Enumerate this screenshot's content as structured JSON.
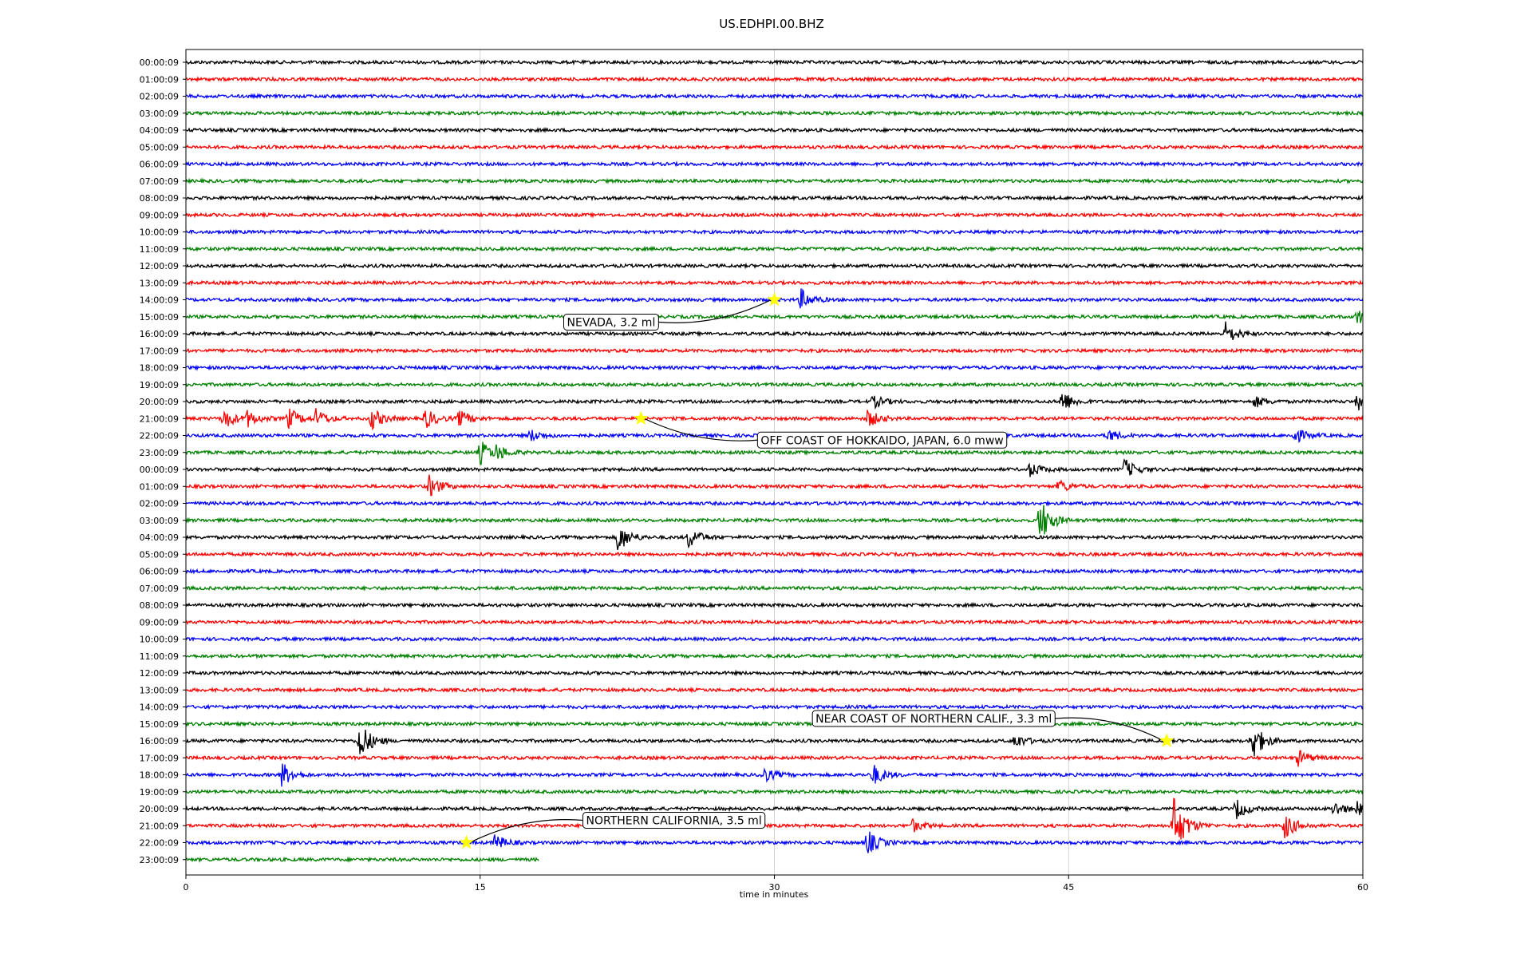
{
  "chart_data": {
    "type": "line",
    "title": "US.EDHPI.00.BHZ",
    "xlabel": "time in minutes",
    "ylabel": "",
    "xlim": [
      0,
      60
    ],
    "x_ticks": [
      0,
      15,
      30,
      45,
      60
    ],
    "grid_x": true,
    "trace_colors": [
      "#000000",
      "#ff0000",
      "#0000ff",
      "#008000"
    ],
    "highlight_color": "#ffff00",
    "rows": [
      "00:00:09",
      "01:00:09",
      "02:00:09",
      "03:00:09",
      "04:00:09",
      "05:00:09",
      "06:00:09",
      "07:00:09",
      "08:00:09",
      "09:00:09",
      "10:00:09",
      "11:00:09",
      "12:00:09",
      "13:00:09",
      "14:00:09",
      "15:00:09",
      "16:00:09",
      "17:00:09",
      "18:00:09",
      "19:00:09",
      "20:00:09",
      "21:00:09",
      "22:00:09",
      "23:00:09",
      "00:00:09",
      "01:00:09",
      "02:00:09",
      "03:00:09",
      "04:00:09",
      "05:00:09",
      "06:00:09",
      "07:00:09",
      "08:00:09",
      "09:00:09",
      "10:00:09",
      "11:00:09",
      "12:00:09",
      "13:00:09",
      "14:00:09",
      "15:00:09",
      "16:00:09",
      "17:00:09",
      "18:00:09",
      "19:00:09",
      "20:00:09",
      "21:00:09",
      "22:00:09",
      "23:00:09"
    ],
    "last_row_end_minute": 18,
    "events": [
      {
        "label": "NEVADA, 3.2 ml",
        "row": 14,
        "minute": 30.0,
        "box_color": "#ffffff"
      },
      {
        "label": "OFF COAST OF HOKKAIDO, JAPAN, 6.0 mww",
        "row": 21,
        "minute": 23.2,
        "box_color": "#ffffff"
      },
      {
        "label": "NEAR COAST OF NORTHERN CALIF., 3.3 ml",
        "row": 40,
        "minute": 50.0,
        "box_color": "#ffffff"
      },
      {
        "label": "NORTHERN CALIFORNIA, 3.5 ml",
        "row": 46,
        "minute": 14.3,
        "box_color": "#ffffff"
      }
    ],
    "bursts": [
      {
        "row": 14,
        "minute": 31.3,
        "amp": 1.0
      },
      {
        "row": 15,
        "minute": 59.7,
        "amp": 0.7
      },
      {
        "row": 16,
        "minute": 53.0,
        "amp": 1.0
      },
      {
        "row": 20,
        "minute": 35.0,
        "amp": 0.6
      },
      {
        "row": 20,
        "minute": 44.6,
        "amp": 1.1
      },
      {
        "row": 20,
        "minute": 54.5,
        "amp": 0.5
      },
      {
        "row": 20,
        "minute": 59.7,
        "amp": 0.8
      },
      {
        "row": 21,
        "minute": 1.9,
        "amp": 1.0
      },
      {
        "row": 21,
        "minute": 3.1,
        "amp": 0.8
      },
      {
        "row": 21,
        "minute": 5.2,
        "amp": 1.0
      },
      {
        "row": 21,
        "minute": 6.6,
        "amp": 0.9
      },
      {
        "row": 21,
        "minute": 9.4,
        "amp": 1.1
      },
      {
        "row": 21,
        "minute": 12.2,
        "amp": 0.9
      },
      {
        "row": 21,
        "minute": 13.9,
        "amp": 0.8
      },
      {
        "row": 21,
        "minute": 34.7,
        "amp": 0.9
      },
      {
        "row": 22,
        "minute": 17.5,
        "amp": 0.6
      },
      {
        "row": 22,
        "minute": 47.0,
        "amp": 0.6
      },
      {
        "row": 22,
        "minute": 56.5,
        "amp": 0.7
      },
      {
        "row": 23,
        "minute": 15.0,
        "amp": 1.1
      },
      {
        "row": 23,
        "minute": 15.8,
        "amp": 0.8
      },
      {
        "row": 24,
        "minute": 43.0,
        "amp": 0.7
      },
      {
        "row": 24,
        "minute": 47.8,
        "amp": 1.0
      },
      {
        "row": 25,
        "minute": 12.4,
        "amp": 1.0
      },
      {
        "row": 25,
        "minute": 44.5,
        "amp": 0.6
      },
      {
        "row": 27,
        "minute": 43.5,
        "amp": 2.2
      },
      {
        "row": 28,
        "minute": 22.0,
        "amp": 1.4
      },
      {
        "row": 28,
        "minute": 25.6,
        "amp": 1.0
      },
      {
        "row": 40,
        "minute": 8.8,
        "amp": 2.0
      },
      {
        "row": 40,
        "minute": 42.2,
        "amp": 0.7
      },
      {
        "row": 40,
        "minute": 54.3,
        "amp": 2.0
      },
      {
        "row": 41,
        "minute": 56.7,
        "amp": 0.7
      },
      {
        "row": 42,
        "minute": 4.8,
        "amp": 1.3
      },
      {
        "row": 42,
        "minute": 29.4,
        "amp": 0.7
      },
      {
        "row": 42,
        "minute": 35.0,
        "amp": 1.0
      },
      {
        "row": 44,
        "minute": 53.5,
        "amp": 1.0
      },
      {
        "row": 44,
        "minute": 58.5,
        "amp": 0.7
      },
      {
        "row": 44,
        "minute": 59.7,
        "amp": 0.6
      },
      {
        "row": 45,
        "minute": 37.0,
        "amp": 0.6
      },
      {
        "row": 45,
        "minute": 50.3,
        "amp": 3.0
      },
      {
        "row": 45,
        "minute": 50.8,
        "amp": 1.2
      },
      {
        "row": 45,
        "minute": 56.0,
        "amp": 1.2
      },
      {
        "row": 46,
        "minute": 15.7,
        "amp": 0.8
      },
      {
        "row": 46,
        "minute": 34.7,
        "amp": 1.2
      }
    ]
  }
}
